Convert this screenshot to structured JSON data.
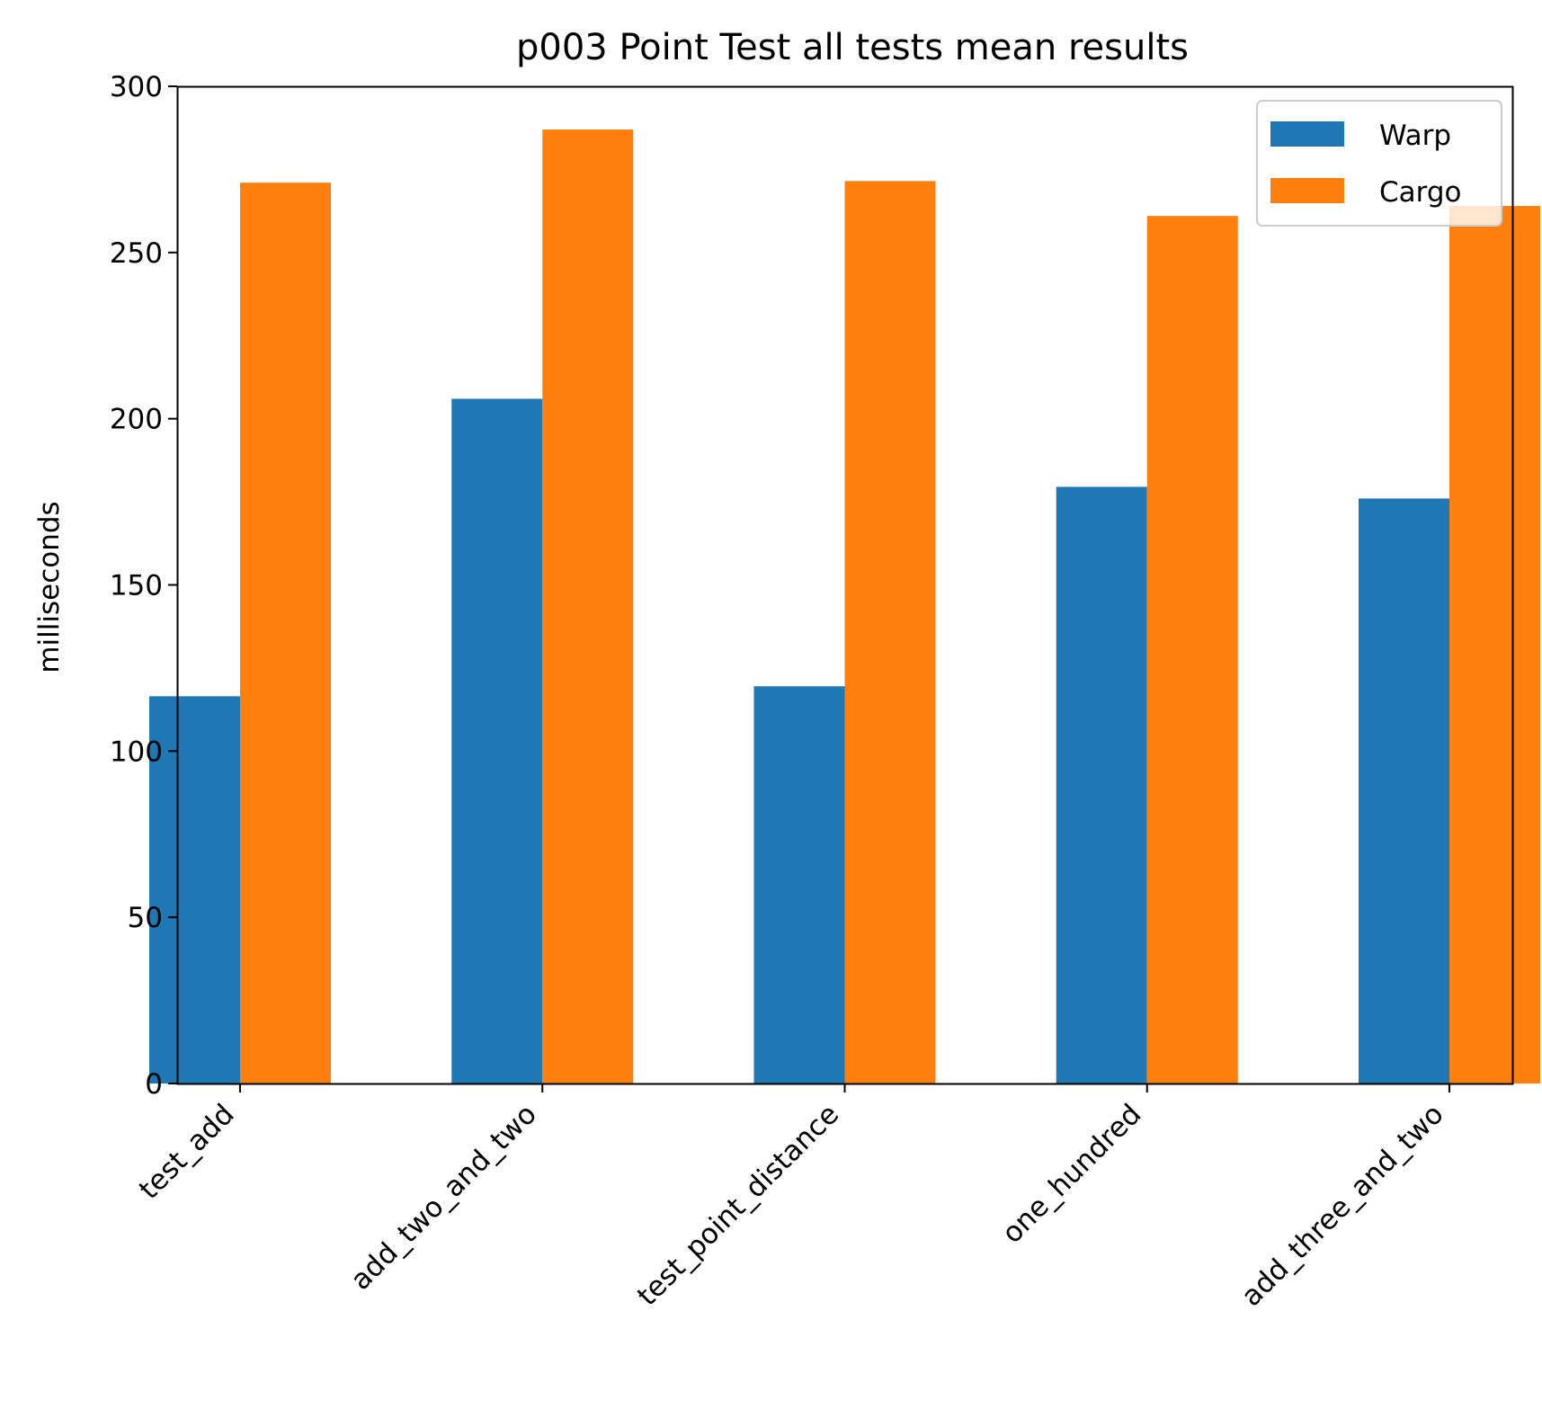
{
  "chart_data": {
    "type": "bar",
    "title": "p003 Point Test all tests mean results",
    "xlabel": "",
    "ylabel": "milliseconds",
    "categories": [
      "test_add",
      "add_two_and_two",
      "test_point_distance",
      "one_hundred",
      "add_three_and_two"
    ],
    "series": [
      {
        "name": "Warp",
        "color": "#1f77b4",
        "values": [
          116.5,
          206,
          119.5,
          179.5,
          176
        ]
      },
      {
        "name": "Cargo",
        "color": "#ff7f0e",
        "values": [
          271,
          287,
          271.5,
          261,
          264
        ]
      }
    ],
    "ylim": [
      0,
      300
    ],
    "yticks": [
      0,
      50,
      100,
      150,
      200,
      250,
      300
    ],
    "grid": false,
    "legend_position": "top-right"
  }
}
